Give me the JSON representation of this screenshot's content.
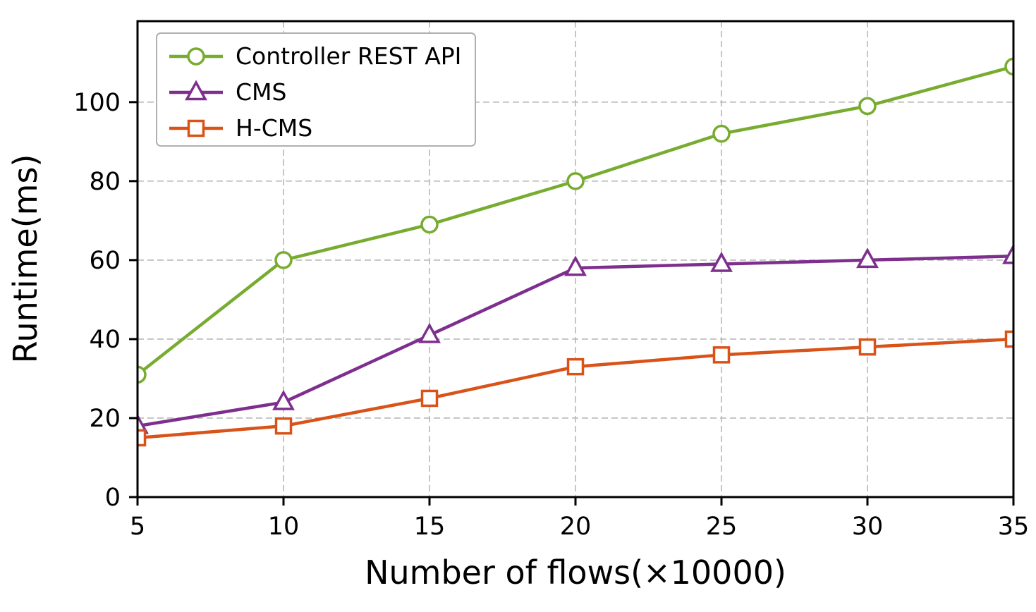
{
  "figure": {
    "background": "#ffffff",
    "text_color": "#000000",
    "grid_color": "#b8b8b8",
    "spine_color": "#000000",
    "legend_border_color": "#b0b0b0"
  },
  "chart_data": {
    "type": "line",
    "title": "",
    "xlabel": "Number of flows(×10000)",
    "ylabel": "Runtime(ms)",
    "x": [
      5,
      10,
      15,
      20,
      25,
      30,
      35
    ],
    "xticks": [
      5,
      10,
      15,
      20,
      25,
      30,
      35
    ],
    "yticks": [
      0,
      20,
      40,
      60,
      80,
      100
    ],
    "xlim": [
      5,
      35
    ],
    "ylim": [
      0,
      120.5
    ],
    "grid": true,
    "grid_style": "dashed",
    "legend_position": "upper-left",
    "series": [
      {
        "name": "Controller REST API",
        "color": "#77AC30",
        "marker": "circle",
        "values": [
          31,
          60,
          69,
          80,
          92,
          99,
          109
        ]
      },
      {
        "name": "CMS",
        "color": "#7E2F8E",
        "marker": "triangle",
        "values": [
          18,
          24,
          41,
          58,
          59,
          60,
          61
        ]
      },
      {
        "name": "H-CMS",
        "color": "#D95319",
        "marker": "square",
        "values": [
          15,
          18,
          25,
          33,
          36,
          38,
          40
        ]
      }
    ]
  }
}
